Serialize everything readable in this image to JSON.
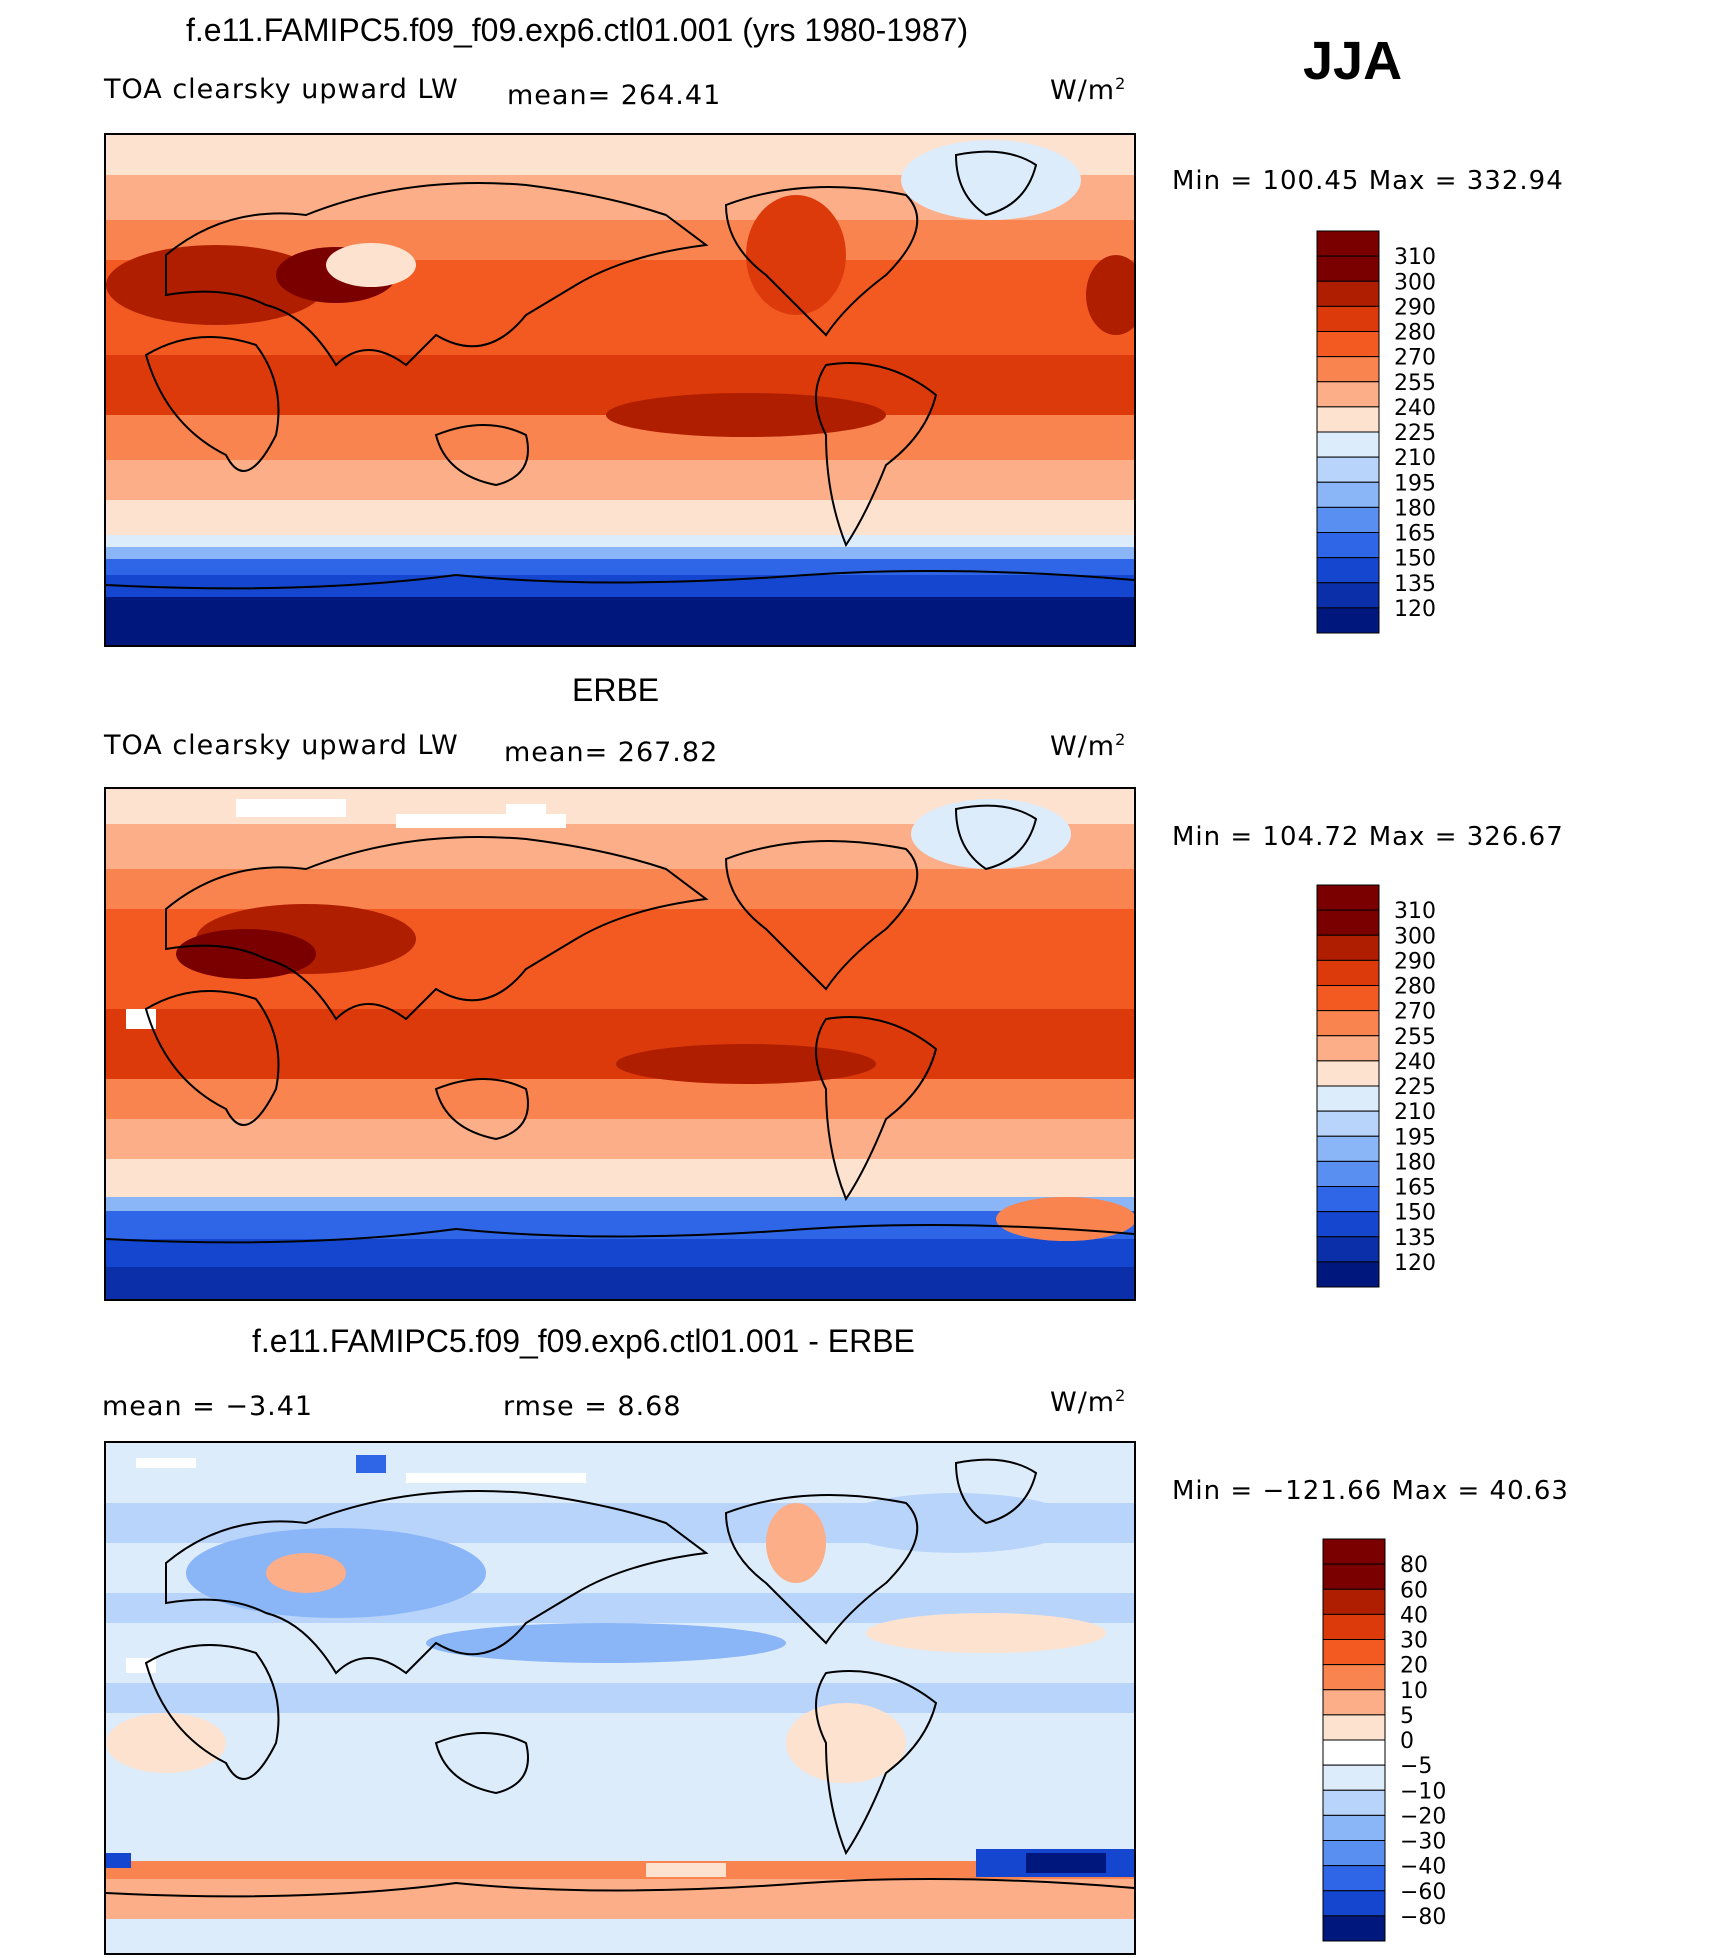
{
  "season": "JJA",
  "units": "W/m",
  "units_sup": "2",
  "panels": [
    {
      "title": "f.e11.FAMIPC5.f09_f09.exp6.ctl01.001 (yrs 1980-1987)",
      "left_label": "TOA clearsky upward LW",
      "mean_label": "mean= 264.41",
      "minmax": "Min  =  100.45  Max  =  332.94",
      "colorbar": [
        "310",
        "300",
        "290",
        "280",
        "270",
        "255",
        "240",
        "225",
        "210",
        "195",
        "180",
        "165",
        "150",
        "135",
        "120"
      ]
    },
    {
      "title": "ERBE",
      "left_label": "TOA clearsky upward LW",
      "mean_label": "mean= 267.82",
      "minmax": "Min  =  104.72  Max  =  326.67",
      "colorbar": [
        "310",
        "300",
        "290",
        "280",
        "270",
        "255",
        "240",
        "225",
        "210",
        "195",
        "180",
        "165",
        "150",
        "135",
        "120"
      ]
    },
    {
      "title": "f.e11.FAMIPC5.f09_f09.exp6.ctl01.001 - ERBE",
      "left_label": "mean  =    −3.41",
      "mean_label": "rmse  =     8.68",
      "minmax": "Min  =  −121.66  Max  =    40.63",
      "colorbar": [
        "80",
        "60",
        "40",
        "30",
        "20",
        "10",
        "5",
        "0",
        "−5",
        "−10",
        "−20",
        "−30",
        "−40",
        "−60",
        "−80"
      ]
    }
  ],
  "colors": {
    "abs_scale": [
      "#7a0000",
      "#b01e00",
      "#dd3a0b",
      "#f25a22",
      "#f9844f",
      "#fcae88",
      "#fde2cf",
      "#dcecfb",
      "#b8d4fb",
      "#8ab5f7",
      "#5a8ff2",
      "#2f66e8",
      "#1546d0",
      "#0a2fa8",
      "#00177e"
    ],
    "diff_scale": [
      "#7a0000",
      "#b01e00",
      "#dd3a0b",
      "#f25a22",
      "#f9844f",
      "#fcae88",
      "#fde2cf",
      "#ffffff",
      "#dcecfb",
      "#b8d4fb",
      "#8ab5f7",
      "#5a8ff2",
      "#2f66e8",
      "#1546d0",
      "#00177e"
    ]
  }
}
